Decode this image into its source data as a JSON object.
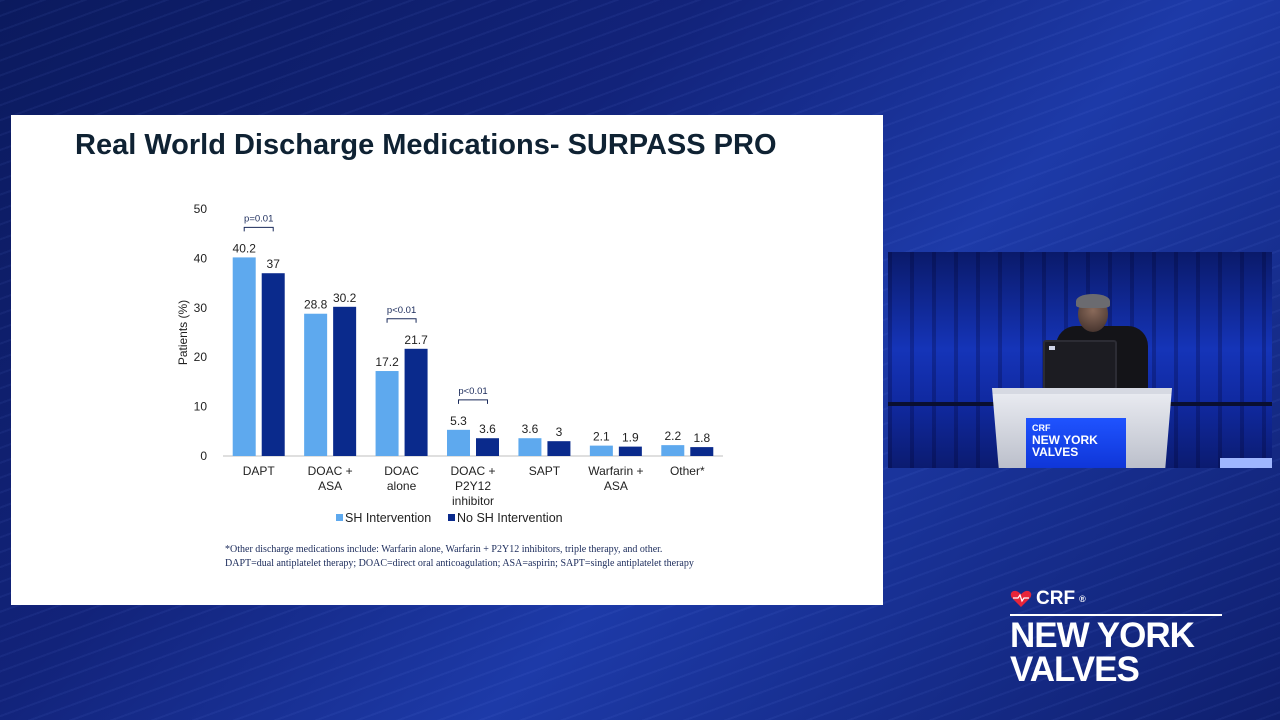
{
  "slide": {
    "title": "Real World Discharge Medications- SURPASS PRO",
    "footnotes": [
      "*Other discharge medications include: Warfarin alone, Warfarin + P2Y12 inhibitors, triple therapy, and other.",
      "DAPT=dual antiplatelet therapy; DOAC=direct oral anticoagulation; ASA=aspirin; SAPT=single antiplatelet therapy"
    ]
  },
  "chart_data": {
    "type": "bar",
    "title": "",
    "xlabel": "",
    "ylabel": "Patients (%)",
    "ylim": [
      0,
      50
    ],
    "yticks": [
      0,
      10,
      20,
      30,
      40,
      50
    ],
    "categories": [
      [
        "DAPT"
      ],
      [
        "DOAC +",
        "ASA"
      ],
      [
        "DOAC",
        "alone"
      ],
      [
        "DOAC +",
        "P2Y12",
        "inhibitor"
      ],
      [
        "SAPT"
      ],
      [
        "Warfarin +",
        "ASA"
      ],
      [
        "Other*"
      ]
    ],
    "series": [
      {
        "name": "SH Intervention",
        "color": "#5ea9ee",
        "values": [
          40.2,
          28.8,
          17.2,
          5.3,
          3.6,
          2.1,
          2.2
        ]
      },
      {
        "name": "No SH Intervention",
        "color": "#0a2a8c",
        "values": [
          37,
          30.2,
          21.7,
          3.6,
          3,
          1.9,
          1.8
        ]
      }
    ],
    "annotations": [
      {
        "category_index": 0,
        "text": "p=0.01"
      },
      {
        "category_index": 2,
        "text": "p<0.01"
      },
      {
        "category_index": 3,
        "text": "p<0.01"
      }
    ],
    "legend_position": "bottom"
  },
  "logo": {
    "brand": "CRF",
    "registered": "®",
    "line1": "NEW YORK",
    "line2": "VALVES",
    "heart_color": "#e8253a"
  },
  "video": {
    "podium_brand": "CRF",
    "podium_line1": "NEW YORK",
    "podium_line2": "VALVES"
  }
}
